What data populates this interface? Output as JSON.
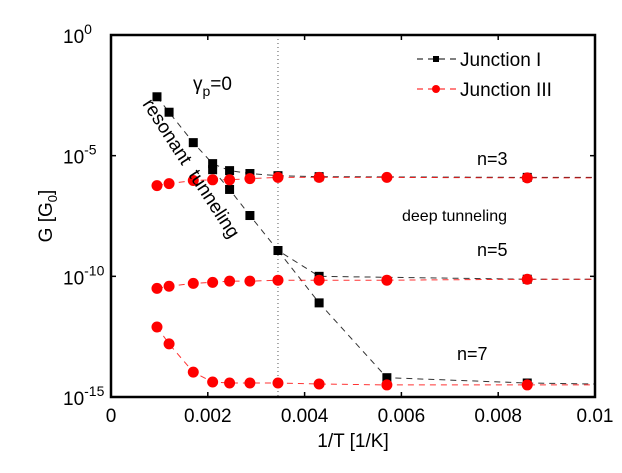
{
  "chart_data": {
    "type": "line",
    "title": "",
    "xlabel": "1/T [1/K]",
    "ylabel_main": "G [G",
    "ylabel_sub": "0",
    "ylabel_end": "]",
    "yscale": "log",
    "xlim": [
      0,
      0.01
    ],
    "ylim_log10": [
      -15,
      0
    ],
    "x_ticks": [
      0,
      0.002,
      0.004,
      0.006,
      0.008,
      0.01
    ],
    "x_tick_labels": [
      "0",
      "0.002",
      "0.004",
      "0.006",
      "0.008",
      "0.01"
    ],
    "y_ticks_log10": [
      0,
      -5,
      -10,
      -15
    ],
    "y_tick_labels": [
      {
        "base": "10",
        "exp": "0"
      },
      {
        "base": "10",
        "exp": "-5"
      },
      {
        "base": "10",
        "exp": "-10"
      },
      {
        "base": "10",
        "exp": "-15"
      }
    ],
    "reference_line_x": 0.00345,
    "legend": {
      "placement": "top-right",
      "entries": [
        "Junction I",
        "Junction III"
      ]
    },
    "annotations": {
      "gamma": {
        "main": "γ",
        "sub": "p",
        "rest": "=0"
      },
      "resonant": "resonant  tunneling",
      "deep": "deep tunneling",
      "n3": "n=3",
      "n5": "n=5",
      "n7": "n=7"
    },
    "series": [
      {
        "name": "Junction I",
        "branch": "n=3",
        "color": "#000000",
        "marker": "square",
        "points_log10": [
          [
            0.00095,
            -2.56
          ],
          [
            0.0012,
            -3.2
          ],
          [
            0.0017,
            -4.46
          ],
          [
            0.0021,
            -5.33
          ],
          [
            0.00245,
            -5.62
          ],
          [
            0.00287,
            -5.74
          ],
          [
            0.00345,
            -5.83
          ],
          [
            0.0043,
            -5.87
          ],
          [
            0.0086,
            -5.9
          ]
        ]
      },
      {
        "name": "Junction I",
        "branch": "n=5",
        "color": "#000000",
        "marker": "square",
        "points_log10": [
          [
            0.0021,
            -5.58
          ],
          [
            0.00245,
            -6.4
          ],
          [
            0.00287,
            -7.48
          ],
          [
            0.00345,
            -8.93
          ],
          [
            0.0043,
            -10.0
          ],
          [
            0.0086,
            -10.12
          ]
        ]
      },
      {
        "name": "Junction I",
        "branch": "n=7",
        "color": "#000000",
        "marker": "square",
        "points_log10": [
          [
            0.00345,
            -8.93
          ],
          [
            0.0043,
            -11.1
          ],
          [
            0.0057,
            -14.2
          ],
          [
            0.0086,
            -14.42
          ]
        ]
      },
      {
        "name": "Junction III",
        "branch": "n=3",
        "color": "#ff0000",
        "marker": "circle",
        "points_log10": [
          [
            0.00095,
            -6.24
          ],
          [
            0.0012,
            -6.16
          ],
          [
            0.0017,
            -6.03
          ],
          [
            0.0021,
            -6.0
          ],
          [
            0.00245,
            -6.0
          ],
          [
            0.00287,
            -5.95
          ],
          [
            0.00345,
            -5.9
          ],
          [
            0.0043,
            -5.9
          ],
          [
            0.0057,
            -5.9
          ],
          [
            0.0086,
            -5.92
          ]
        ]
      },
      {
        "name": "Junction III",
        "branch": "n=5",
        "color": "#ff0000",
        "marker": "circle",
        "points_log10": [
          [
            0.00095,
            -10.5
          ],
          [
            0.0012,
            -10.41
          ],
          [
            0.0017,
            -10.29
          ],
          [
            0.0021,
            -10.25
          ],
          [
            0.00245,
            -10.2
          ],
          [
            0.00287,
            -10.2
          ],
          [
            0.00345,
            -10.16
          ],
          [
            0.0043,
            -10.16
          ],
          [
            0.0057,
            -10.16
          ],
          [
            0.0086,
            -10.12
          ]
        ]
      },
      {
        "name": "Junction III",
        "branch": "n=7",
        "color": "#ff0000",
        "marker": "circle",
        "points_log10": [
          [
            0.00095,
            -12.1
          ],
          [
            0.0012,
            -12.8
          ],
          [
            0.0017,
            -13.97
          ],
          [
            0.0021,
            -14.38
          ],
          [
            0.00245,
            -14.42
          ],
          [
            0.00287,
            -14.42
          ],
          [
            0.00345,
            -14.42
          ],
          [
            0.0043,
            -14.46
          ],
          [
            0.0057,
            -14.5
          ],
          [
            0.0086,
            -14.5
          ]
        ]
      }
    ]
  }
}
